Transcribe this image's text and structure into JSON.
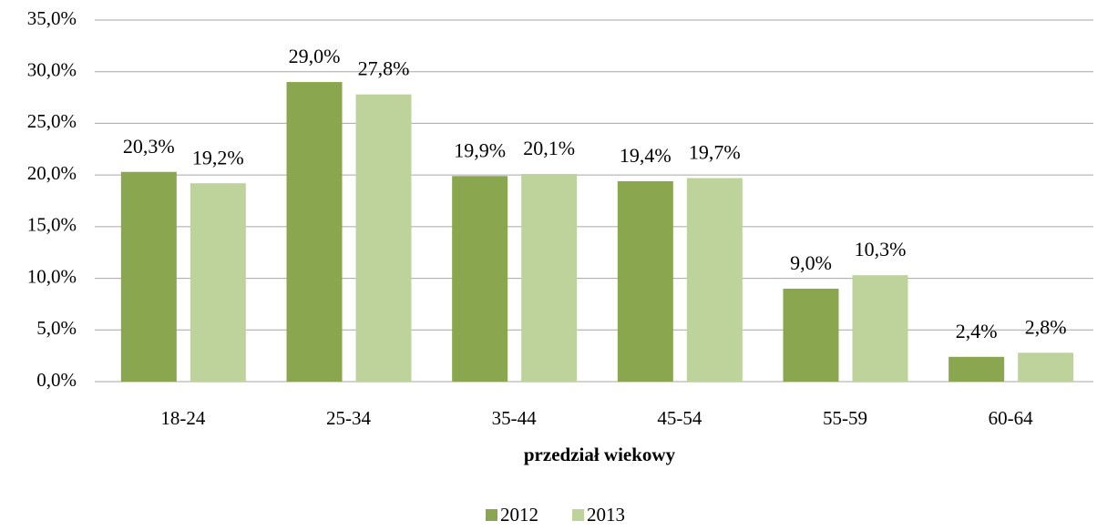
{
  "chart_data": {
    "type": "bar",
    "x_label": "przedział wiekowy",
    "categories": [
      "18-24",
      "25-34",
      "35-44",
      "45-54",
      "55-59",
      "60-64"
    ],
    "series": [
      {
        "name": "2012",
        "color": "#8aa64e",
        "values": [
          20.3,
          29.0,
          19.9,
          19.4,
          9.0,
          2.4
        ],
        "value_labels": [
          "20,3%",
          "29,0%",
          "19,9%",
          "19,4%",
          "9,0%",
          "2,4%"
        ]
      },
      {
        "name": "2013",
        "color": "#bdd39b",
        "values": [
          19.2,
          27.8,
          20.1,
          19.7,
          10.3,
          2.8
        ],
        "value_labels": [
          "19,2%",
          "27,8%",
          "20,1%",
          "19,7%",
          "10,3%",
          "2,8%"
        ]
      }
    ],
    "ylim": [
      0,
      35
    ],
    "yticks": [
      {
        "value": 0,
        "label": "0,0%"
      },
      {
        "value": 5,
        "label": "5,0%"
      },
      {
        "value": 10,
        "label": "10,0%"
      },
      {
        "value": 15,
        "label": "15,0%"
      },
      {
        "value": 20,
        "label": "20,0%"
      },
      {
        "value": 25,
        "label": "25,0%"
      },
      {
        "value": 30,
        "label": "30,0%"
      },
      {
        "value": 35,
        "label": "35,0%"
      }
    ],
    "grid": true,
    "legend": "bottom"
  }
}
